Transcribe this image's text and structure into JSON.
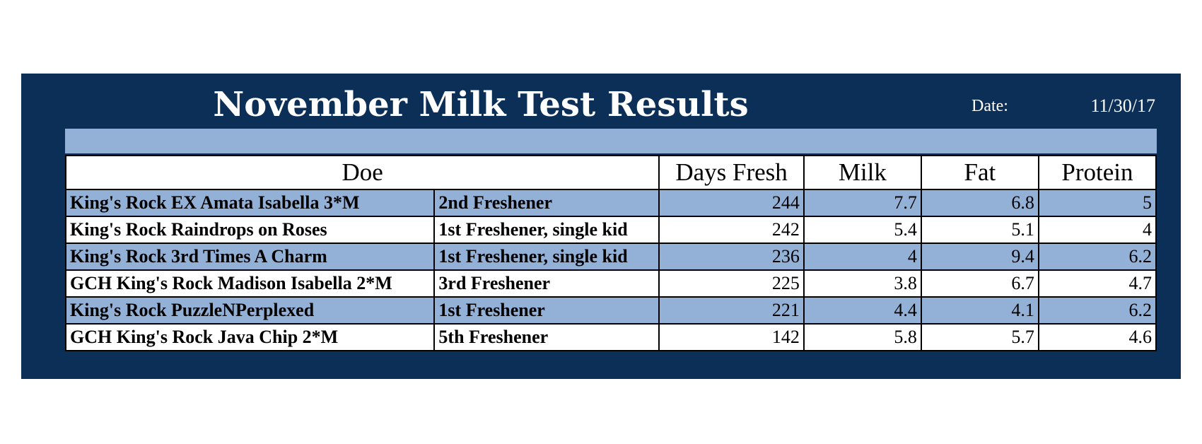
{
  "header": {
    "title": "November Milk Test Results",
    "date_label": "Date:",
    "date_value": "11/30/17"
  },
  "columns": {
    "doe": "Doe",
    "days_fresh": "Days Fresh",
    "milk": "Milk",
    "fat": "Fat",
    "protein": "Protein"
  },
  "rows": [
    {
      "name": "King's Rock EX Amata Isabella 3*M",
      "note": "2nd Freshener",
      "days_fresh": "244",
      "milk": "7.7",
      "fat": "6.8",
      "protein": "5"
    },
    {
      "name": "King's Rock Raindrops on Roses",
      "note": "1st Freshener, single kid",
      "days_fresh": "242",
      "milk": "5.4",
      "fat": "5.1",
      "protein": "4"
    },
    {
      "name": "King's Rock 3rd Times A Charm",
      "note": "1st Freshener, single kid",
      "days_fresh": "236",
      "milk": "4",
      "fat": "9.4",
      "protein": "6.2"
    },
    {
      "name": "GCH King's Rock Madison Isabella 2*M",
      "note": "3rd Freshener",
      "days_fresh": "225",
      "milk": "3.8",
      "fat": "6.7",
      "protein": "4.7"
    },
    {
      "name": "King's Rock PuzzleNPerplexed",
      "note": "1st Freshener",
      "days_fresh": "221",
      "milk": "4.4",
      "fat": "4.1",
      "protein": "6.2"
    },
    {
      "name": "GCH King's Rock Java Chip 2*M",
      "note": "5th Freshener",
      "days_fresh": "142",
      "milk": "5.8",
      "fat": "5.7",
      "protein": "4.6"
    }
  ],
  "colors": {
    "panel_background": "#0c2f57",
    "row_shade": "#93b1d7"
  }
}
